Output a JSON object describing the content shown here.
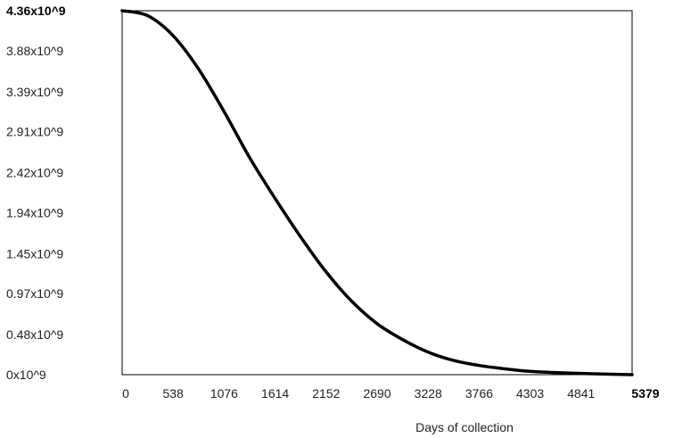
{
  "chart_data": {
    "type": "line",
    "title": "",
    "xlabel": "Days of collection",
    "ylabel": "",
    "xlim": [
      0,
      5379
    ],
    "ylim": [
      0,
      4360000000
    ],
    "grid": false,
    "legend": "none",
    "line_color": "#000000",
    "x_ticks": [
      {
        "value": 0,
        "label": "0",
        "bold": false
      },
      {
        "value": 538,
        "label": "538",
        "bold": false
      },
      {
        "value": 1076,
        "label": "1076",
        "bold": false
      },
      {
        "value": 1614,
        "label": "1614",
        "bold": false
      },
      {
        "value": 2152,
        "label": "2152",
        "bold": false
      },
      {
        "value": 2690,
        "label": "2690",
        "bold": false
      },
      {
        "value": 3228,
        "label": "3228",
        "bold": false
      },
      {
        "value": 3766,
        "label": "3766",
        "bold": false
      },
      {
        "value": 4303,
        "label": "4303",
        "bold": false
      },
      {
        "value": 4841,
        "label": "4841",
        "bold": false
      },
      {
        "value": 5379,
        "label": "5379",
        "bold": true
      }
    ],
    "y_ticks": [
      {
        "value": 0,
        "label": "0x10^9",
        "bold": false
      },
      {
        "value": 480000000,
        "label": "0.48x10^9",
        "bold": false
      },
      {
        "value": 970000000,
        "label": "0.97x10^9",
        "bold": false
      },
      {
        "value": 1450000000,
        "label": "1.45x10^9",
        "bold": false
      },
      {
        "value": 1940000000,
        "label": "1.94x10^9",
        "bold": false
      },
      {
        "value": 2420000000,
        "label": "2.42x10^9",
        "bold": false
      },
      {
        "value": 2910000000,
        "label": "2.91x10^9",
        "bold": false
      },
      {
        "value": 3390000000,
        "label": "3.39x10^9",
        "bold": false
      },
      {
        "value": 3880000000,
        "label": "3.88x10^9",
        "bold": false
      },
      {
        "value": 4360000000,
        "label": "4.36x10^9",
        "bold": true
      }
    ],
    "series": [
      {
        "x": [
          0,
          269,
          538,
          807,
          1076,
          1345,
          1614,
          1883,
          2152,
          2421,
          2690,
          2959,
          3228,
          3497,
          3766,
          4035,
          4303,
          4572,
          4841,
          5110,
          5379
        ],
        "y": [
          4360000000,
          4300000000,
          4060000000,
          3660000000,
          3150000000,
          2600000000,
          2110000000,
          1650000000,
          1230000000,
          880000000,
          610000000,
          420000000,
          270000000,
          170000000,
          110000000,
          70000000,
          40000000,
          25000000,
          15000000,
          7000000,
          0
        ]
      }
    ]
  }
}
